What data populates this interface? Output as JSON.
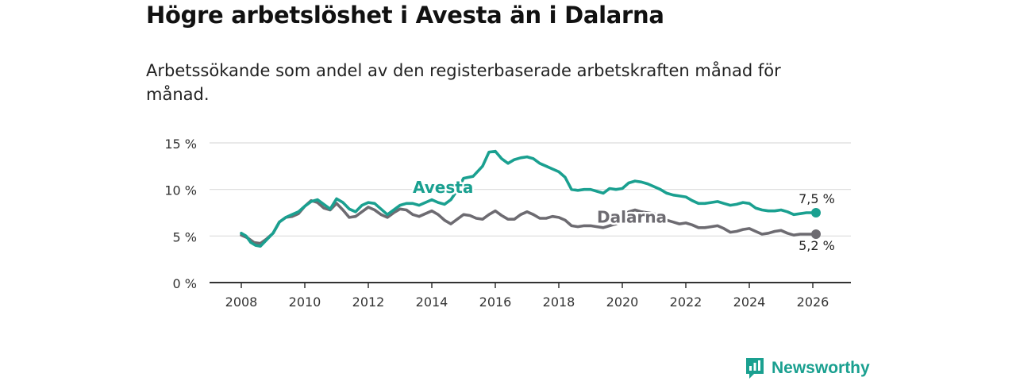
{
  "title": "Högre arbetslöshet i Avesta än i Dalarna",
  "subtitle": "Arbetssökande som andel av den registerbaserade arbetskraften månad för månad.",
  "brand": {
    "name": "Newsworthy",
    "icon": "newsworthy-logo-icon",
    "color": "#1aa090"
  },
  "chart_data": {
    "type": "line",
    "title": "Högre arbetslöshet i Avesta än i Dalarna",
    "xlabel": "",
    "ylabel": "",
    "xlim": [
      2007,
      2027.2
    ],
    "ylim": [
      0,
      15
    ],
    "x_ticks": [
      2008,
      2010,
      2012,
      2014,
      2016,
      2018,
      2020,
      2022,
      2024,
      2026
    ],
    "y_ticks": [
      0,
      5,
      10,
      15
    ],
    "y_tick_labels": [
      "0 %",
      "5 %",
      "10 %",
      "15 %"
    ],
    "grid": true,
    "series": [
      {
        "name": "Avesta",
        "color": "#1aa090",
        "end_label": "7,5 %",
        "points": [
          [
            2008.0,
            5.3
          ],
          [
            2008.15,
            5.0
          ],
          [
            2008.3,
            4.3
          ],
          [
            2008.45,
            4.0
          ],
          [
            2008.6,
            3.9
          ],
          [
            2008.8,
            4.6
          ],
          [
            2009.0,
            5.3
          ],
          [
            2009.2,
            6.5
          ],
          [
            2009.4,
            7.0
          ],
          [
            2009.6,
            7.3
          ],
          [
            2009.8,
            7.6
          ],
          [
            2010.0,
            8.2
          ],
          [
            2010.2,
            8.7
          ],
          [
            2010.4,
            8.9
          ],
          [
            2010.6,
            8.4
          ],
          [
            2010.8,
            7.9
          ],
          [
            2011.0,
            9.0
          ],
          [
            2011.2,
            8.6
          ],
          [
            2011.4,
            7.9
          ],
          [
            2011.6,
            7.6
          ],
          [
            2011.8,
            8.3
          ],
          [
            2012.0,
            8.6
          ],
          [
            2012.2,
            8.5
          ],
          [
            2012.4,
            7.9
          ],
          [
            2012.6,
            7.3
          ],
          [
            2012.8,
            7.8
          ],
          [
            2013.0,
            8.3
          ],
          [
            2013.2,
            8.5
          ],
          [
            2013.4,
            8.5
          ],
          [
            2013.6,
            8.3
          ],
          [
            2013.8,
            8.6
          ],
          [
            2014.0,
            8.9
          ],
          [
            2014.2,
            8.6
          ],
          [
            2014.4,
            8.4
          ],
          [
            2014.6,
            8.9
          ],
          [
            2014.8,
            9.9
          ],
          [
            2015.0,
            11.2
          ],
          [
            2015.3,
            11.4
          ],
          [
            2015.6,
            12.5
          ],
          [
            2015.8,
            14.0
          ],
          [
            2016.0,
            14.1
          ],
          [
            2016.2,
            13.3
          ],
          [
            2016.4,
            12.8
          ],
          [
            2016.6,
            13.2
          ],
          [
            2016.8,
            13.4
          ],
          [
            2017.0,
            13.5
          ],
          [
            2017.2,
            13.3
          ],
          [
            2017.4,
            12.8
          ],
          [
            2017.6,
            12.5
          ],
          [
            2017.8,
            12.2
          ],
          [
            2018.0,
            11.9
          ],
          [
            2018.2,
            11.3
          ],
          [
            2018.4,
            10.0
          ],
          [
            2018.6,
            9.9
          ],
          [
            2018.8,
            10.0
          ],
          [
            2019.0,
            10.0
          ],
          [
            2019.2,
            9.8
          ],
          [
            2019.4,
            9.6
          ],
          [
            2019.6,
            10.1
          ],
          [
            2019.8,
            10.0
          ],
          [
            2020.0,
            10.1
          ],
          [
            2020.2,
            10.7
          ],
          [
            2020.4,
            10.9
          ],
          [
            2020.6,
            10.8
          ],
          [
            2020.8,
            10.6
          ],
          [
            2021.0,
            10.3
          ],
          [
            2021.2,
            10.0
          ],
          [
            2021.4,
            9.6
          ],
          [
            2021.6,
            9.4
          ],
          [
            2021.8,
            9.3
          ],
          [
            2022.0,
            9.2
          ],
          [
            2022.2,
            8.8
          ],
          [
            2022.4,
            8.5
          ],
          [
            2022.6,
            8.5
          ],
          [
            2022.8,
            8.6
          ],
          [
            2023.0,
            8.7
          ],
          [
            2023.2,
            8.5
          ],
          [
            2023.4,
            8.3
          ],
          [
            2023.6,
            8.4
          ],
          [
            2023.8,
            8.6
          ],
          [
            2024.0,
            8.5
          ],
          [
            2024.2,
            8.0
          ],
          [
            2024.4,
            7.8
          ],
          [
            2024.6,
            7.7
          ],
          [
            2024.8,
            7.7
          ],
          [
            2025.0,
            7.8
          ],
          [
            2025.2,
            7.6
          ],
          [
            2025.4,
            7.3
          ],
          [
            2025.6,
            7.4
          ],
          [
            2025.8,
            7.5
          ],
          [
            2026.0,
            7.5
          ],
          [
            2026.1,
            7.5
          ]
        ]
      },
      {
        "name": "Dalarna",
        "color": "#6d6b71",
        "end_label": "5,2 %",
        "points": [
          [
            2008.0,
            5.1
          ],
          [
            2008.2,
            4.8
          ],
          [
            2008.4,
            4.3
          ],
          [
            2008.6,
            4.2
          ],
          [
            2008.8,
            4.7
          ],
          [
            2009.0,
            5.3
          ],
          [
            2009.2,
            6.5
          ],
          [
            2009.4,
            7.0
          ],
          [
            2009.6,
            7.1
          ],
          [
            2009.8,
            7.4
          ],
          [
            2010.0,
            8.2
          ],
          [
            2010.2,
            8.8
          ],
          [
            2010.4,
            8.6
          ],
          [
            2010.6,
            8.0
          ],
          [
            2010.8,
            7.8
          ],
          [
            2011.0,
            8.5
          ],
          [
            2011.2,
            7.8
          ],
          [
            2011.4,
            7.0
          ],
          [
            2011.6,
            7.1
          ],
          [
            2011.8,
            7.6
          ],
          [
            2012.0,
            8.1
          ],
          [
            2012.2,
            7.8
          ],
          [
            2012.4,
            7.3
          ],
          [
            2012.6,
            7.0
          ],
          [
            2012.8,
            7.5
          ],
          [
            2013.0,
            7.9
          ],
          [
            2013.2,
            7.8
          ],
          [
            2013.4,
            7.3
          ],
          [
            2013.6,
            7.1
          ],
          [
            2013.8,
            7.4
          ],
          [
            2014.0,
            7.7
          ],
          [
            2014.2,
            7.3
          ],
          [
            2014.4,
            6.7
          ],
          [
            2014.6,
            6.3
          ],
          [
            2014.8,
            6.8
          ],
          [
            2015.0,
            7.3
          ],
          [
            2015.2,
            7.2
          ],
          [
            2015.4,
            6.9
          ],
          [
            2015.6,
            6.8
          ],
          [
            2015.8,
            7.3
          ],
          [
            2016.0,
            7.7
          ],
          [
            2016.2,
            7.2
          ],
          [
            2016.4,
            6.8
          ],
          [
            2016.6,
            6.8
          ],
          [
            2016.8,
            7.3
          ],
          [
            2017.0,
            7.6
          ],
          [
            2017.2,
            7.3
          ],
          [
            2017.4,
            6.9
          ],
          [
            2017.6,
            6.9
          ],
          [
            2017.8,
            7.1
          ],
          [
            2018.0,
            7.0
          ],
          [
            2018.2,
            6.7
          ],
          [
            2018.4,
            6.1
          ],
          [
            2018.6,
            6.0
          ],
          [
            2018.8,
            6.1
          ],
          [
            2019.0,
            6.1
          ],
          [
            2019.2,
            6.0
          ],
          [
            2019.4,
            5.9
          ],
          [
            2019.6,
            6.1
          ],
          [
            2019.8,
            6.3
          ],
          [
            2020.0,
            6.6
          ],
          [
            2020.2,
            7.6
          ],
          [
            2020.4,
            7.8
          ],
          [
            2020.6,
            7.6
          ],
          [
            2020.8,
            7.5
          ],
          [
            2021.0,
            7.4
          ],
          [
            2021.2,
            7.0
          ],
          [
            2021.4,
            6.7
          ],
          [
            2021.6,
            6.5
          ],
          [
            2021.8,
            6.3
          ],
          [
            2022.0,
            6.4
          ],
          [
            2022.2,
            6.2
          ],
          [
            2022.4,
            5.9
          ],
          [
            2022.6,
            5.9
          ],
          [
            2022.8,
            6.0
          ],
          [
            2023.0,
            6.1
          ],
          [
            2023.2,
            5.8
          ],
          [
            2023.4,
            5.4
          ],
          [
            2023.6,
            5.5
          ],
          [
            2023.8,
            5.7
          ],
          [
            2024.0,
            5.8
          ],
          [
            2024.2,
            5.5
          ],
          [
            2024.4,
            5.2
          ],
          [
            2024.6,
            5.3
          ],
          [
            2024.8,
            5.5
          ],
          [
            2025.0,
            5.6
          ],
          [
            2025.2,
            5.3
          ],
          [
            2025.4,
            5.1
          ],
          [
            2025.6,
            5.2
          ],
          [
            2025.8,
            5.2
          ],
          [
            2026.0,
            5.2
          ],
          [
            2026.1,
            5.2
          ]
        ]
      }
    ]
  }
}
